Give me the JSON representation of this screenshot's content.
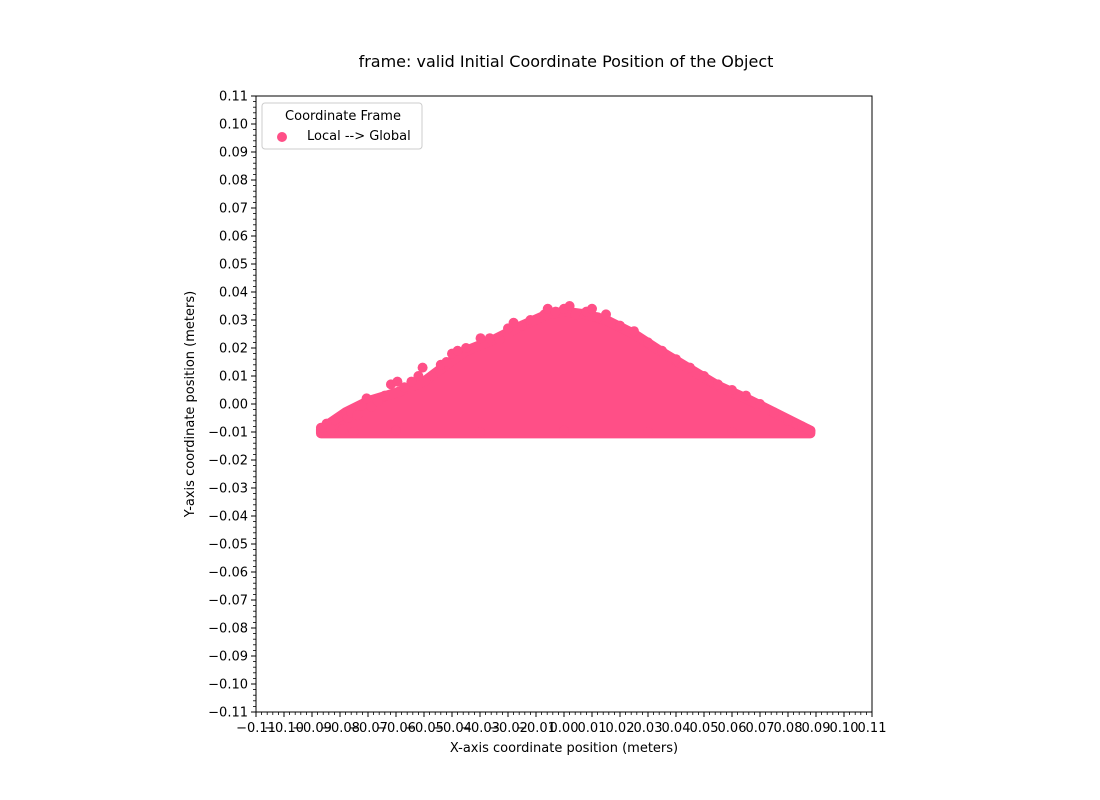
{
  "chart_data": {
    "type": "scatter",
    "title": "frame: valid Initial Coordinate Position of the Object",
    "xlabel": "X-axis coordinate position (meters)",
    "ylabel": "Y-axis coordinate position (meters)",
    "xlim": [
      -0.11,
      0.11
    ],
    "ylim": [
      -0.11,
      0.11
    ],
    "xticks": [
      -0.11,
      -0.1,
      -0.09,
      -0.08,
      -0.07,
      -0.06,
      -0.05,
      -0.04,
      -0.03,
      -0.02,
      -0.01,
      0.0,
      0.01,
      0.02,
      0.03,
      0.04,
      0.05,
      0.06,
      0.07,
      0.08,
      0.09,
      0.1,
      0.11
    ],
    "yticks": [
      -0.11,
      -0.1,
      -0.09,
      -0.08,
      -0.07,
      -0.06,
      -0.05,
      -0.04,
      -0.03,
      -0.02,
      -0.01,
      0.0,
      0.01,
      0.02,
      0.03,
      0.04,
      0.05,
      0.06,
      0.07,
      0.08,
      0.09,
      0.1,
      0.11
    ],
    "xtick_labels": [
      "−0.11",
      "−0.10",
      "−0.09",
      "−0.08",
      "−0.07",
      "−0.06",
      "−0.05",
      "−0.04",
      "−0.03",
      "−0.02",
      "−0.01",
      "0.00",
      "0.01",
      "0.02",
      "0.03",
      "0.04",
      "0.05",
      "0.06",
      "0.07",
      "0.08",
      "0.09",
      "0.10",
      "0.11"
    ],
    "ytick_labels": [
      "−0.11",
      "−0.10",
      "−0.09",
      "−0.08",
      "−0.07",
      "−0.06",
      "−0.05",
      "−0.04",
      "−0.03",
      "−0.02",
      "−0.01",
      "0.00",
      "0.01",
      "0.02",
      "0.03",
      "0.04",
      "0.05",
      "0.06",
      "0.07",
      "0.08",
      "0.09",
      "0.10",
      "0.11"
    ],
    "minor_ticks_per_major": 4,
    "grid": false,
    "legend": {
      "title": "Coordinate Frame",
      "placement": "upper-left"
    },
    "series": [
      {
        "name": "Local --> Global",
        "color": "#FF4F87",
        "points": [
          [
            -0.0868,
            -0.0085
          ],
          [
            -0.0848,
            -0.007
          ],
          [
            -0.0832,
            -0.009
          ],
          [
            -0.079,
            -0.009
          ],
          [
            -0.0778,
            -0.0035
          ],
          [
            -0.0772,
            -0.005
          ],
          [
            -0.076,
            -0.003
          ],
          [
            -0.0752,
            -0.01
          ],
          [
            -0.0738,
            -0.004
          ],
          [
            -0.0722,
            -0.0005
          ],
          [
            -0.0705,
            0.002
          ],
          [
            -0.0688,
            -0.001
          ],
          [
            -0.0665,
            0.001
          ],
          [
            -0.064,
            0.003
          ],
          [
            -0.0618,
            0.007
          ],
          [
            -0.0595,
            0.008
          ],
          [
            -0.057,
            0.006
          ],
          [
            -0.0545,
            0.008
          ],
          [
            -0.052,
            0.01
          ],
          [
            -0.0505,
            0.013
          ],
          [
            -0.047,
            0.01
          ],
          [
            -0.044,
            0.014
          ],
          [
            -0.042,
            0.015
          ],
          [
            -0.04,
            0.018
          ],
          [
            -0.038,
            0.019
          ],
          [
            -0.035,
            0.02
          ],
          [
            -0.0298,
            0.0235
          ],
          [
            -0.0265,
            0.0235
          ],
          [
            -0.023,
            0.023
          ],
          [
            -0.02,
            0.027
          ],
          [
            -0.018,
            0.029
          ],
          [
            -0.015,
            0.028
          ],
          [
            -0.012,
            0.03
          ],
          [
            -0.007,
            0.032
          ],
          [
            -0.0058,
            0.034
          ],
          [
            -0.003,
            0.033
          ],
          [
            0.0,
            0.034
          ],
          [
            0.002,
            0.035
          ],
          [
            0.004,
            0.032
          ],
          [
            0.008,
            0.033
          ],
          [
            0.01,
            0.034
          ],
          [
            0.012,
            0.031
          ],
          [
            0.015,
            0.032
          ],
          [
            0.02,
            0.028
          ],
          [
            0.025,
            0.026
          ],
          [
            0.03,
            0.022
          ],
          [
            0.035,
            0.019
          ],
          [
            0.04,
            0.016
          ],
          [
            0.045,
            0.013
          ],
          [
            0.05,
            0.01
          ],
          [
            0.055,
            0.007
          ],
          [
            0.06,
            0.005
          ],
          [
            0.065,
            0.003
          ],
          [
            0.07,
            0.0
          ],
          [
            0.075,
            -0.003
          ],
          [
            0.08,
            -0.006
          ],
          [
            0.085,
            -0.008
          ],
          [
            0.088,
            -0.0095
          ],
          [
            0.087,
            -0.009
          ],
          [
            0.06,
            -0.01
          ],
          [
            0.03,
            -0.01
          ],
          [
            0.0,
            -0.0095
          ],
          [
            -0.03,
            -0.01
          ],
          [
            -0.06,
            -0.0095
          ]
        ],
        "filled_region": [
          [
            -0.0868,
            -0.009
          ],
          [
            -0.078,
            -0.003
          ],
          [
            -0.07,
            0.001
          ],
          [
            -0.06,
            0.004
          ],
          [
            -0.05,
            0.008
          ],
          [
            -0.042,
            0.014
          ],
          [
            -0.035,
            0.019
          ],
          [
            -0.025,
            0.023
          ],
          [
            -0.015,
            0.028
          ],
          [
            -0.006,
            0.032
          ],
          [
            0.0,
            0.033
          ],
          [
            0.008,
            0.032
          ],
          [
            0.015,
            0.03
          ],
          [
            0.025,
            0.025
          ],
          [
            0.035,
            0.0185
          ],
          [
            0.045,
            0.0125
          ],
          [
            0.055,
            0.0065
          ],
          [
            0.065,
            0.002
          ],
          [
            0.075,
            -0.003
          ],
          [
            0.088,
            -0.0095
          ],
          [
            0.088,
            -0.0105
          ],
          [
            -0.0868,
            -0.0105
          ]
        ]
      }
    ]
  }
}
